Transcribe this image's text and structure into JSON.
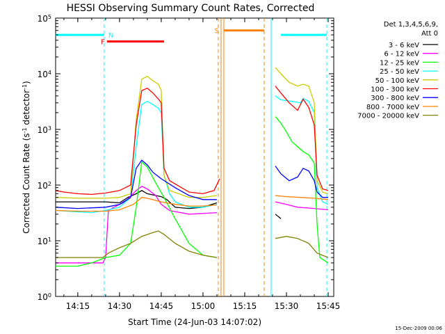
{
  "chart_data": {
    "type": "line",
    "title": "HESSI Observing Summary Count Rates, Corrected",
    "xlabel": "Start Time (24-Jun-03 14:07:02)",
    "ylabel": "Corrected Count Rate (s",
    "ylabel_sup1": "-1",
    "ylabel_mid": " detector",
    "ylabel_sup2": "-1",
    "ylabel_end": ")",
    "footer": "15-Dec-2009 00:06",
    "y_scale": "log",
    "ylim": [
      1,
      100000
    ],
    "xlim": [
      "14:07:02",
      "15:47:00"
    ],
    "x_ticks": [
      "14:15",
      "14:30",
      "14:45",
      "15:00",
      "15:15",
      "15:30",
      "15:45"
    ],
    "y_ticks": [
      {
        "base": "10",
        "exp": "0",
        "value": 1
      },
      {
        "base": "10",
        "exp": "1",
        "value": 10
      },
      {
        "base": "10",
        "exp": "2",
        "value": 100
      },
      {
        "base": "10",
        "exp": "3",
        "value": 1000
      },
      {
        "base": "10",
        "exp": "4",
        "value": 10000
      },
      {
        "base": "10",
        "exp": "5",
        "value": 100000
      }
    ],
    "legend_title_1": "Det 1,3,4,5,6,9,",
    "legend_title_2": "Att 0",
    "legend_placement": "right",
    "series": [
      {
        "name": "3 - 6 keV",
        "color": "#000000",
        "segments": [
          [
            [
              "14:07",
              50
            ],
            [
              "14:25",
              50
            ],
            [
              "14:30",
              48
            ],
            [
              "14:33",
              60
            ],
            [
              "14:36",
              70
            ],
            [
              "14:38",
              80
            ],
            [
              "14:40",
              70
            ],
            [
              "14:45",
              62
            ],
            [
              "14:47",
              55
            ],
            [
              "14:50",
              40
            ],
            [
              "14:55",
              38
            ],
            [
              "15:00",
              40
            ],
            [
              "15:05",
              48
            ]
          ],
          [
            [
              "15:26",
              30
            ],
            [
              "15:28",
              25
            ]
          ]
        ]
      },
      {
        "name": "6 - 12 keV",
        "color": "#ff00ff",
        "segments": [
          [
            [
              "14:07",
              4
            ],
            [
              "14:24",
              4
            ],
            [
              "14:25",
              5
            ],
            [
              "14:26",
              35
            ],
            [
              "14:28",
              40
            ],
            [
              "14:32",
              50
            ],
            [
              "14:36",
              80
            ],
            [
              "14:38",
              95
            ],
            [
              "14:40",
              85
            ],
            [
              "14:43",
              65
            ],
            [
              "14:45",
              45
            ],
            [
              "14:48",
              35
            ],
            [
              "14:55",
              30
            ],
            [
              "15:05",
              32
            ]
          ],
          [
            [
              "15:26",
              50
            ],
            [
              "15:30",
              45
            ],
            [
              "15:34",
              40
            ],
            [
              "15:40",
              38
            ],
            [
              "15:45",
              36
            ]
          ]
        ]
      },
      {
        "name": "12 - 25 keV",
        "color": "#00ff00",
        "segments": [
          [
            [
              "14:07",
              3.5
            ],
            [
              "14:15",
              3.5
            ],
            [
              "14:20",
              4
            ],
            [
              "14:25",
              5
            ],
            [
              "14:30",
              5.5
            ],
            [
              "14:34",
              9
            ],
            [
              "14:36",
              40
            ],
            [
              "14:38",
              260
            ],
            [
              "14:40",
              210
            ],
            [
              "14:43",
              110
            ],
            [
              "14:46",
              60
            ],
            [
              "14:50",
              25
            ],
            [
              "14:55",
              9
            ],
            [
              "15:00",
              5.5
            ],
            [
              "15:05",
              5
            ]
          ],
          [
            [
              "15:26",
              1700
            ],
            [
              "15:28",
              1300
            ],
            [
              "15:30",
              900
            ],
            [
              "15:32",
              600
            ],
            [
              "15:36",
              400
            ],
            [
              "15:38",
              350
            ],
            [
              "15:40",
              250
            ],
            [
              "15:41",
              20
            ],
            [
              "15:42",
              5
            ],
            [
              "15:45",
              4
            ]
          ]
        ]
      },
      {
        "name": "25 - 50 keV",
        "color": "#00ffff",
        "segments": [
          [
            [
              "14:07",
              35
            ],
            [
              "14:15",
              33
            ],
            [
              "14:20",
              32
            ],
            [
              "14:25",
              35
            ],
            [
              "14:30",
              40
            ],
            [
              "14:34",
              60
            ],
            [
              "14:36",
              500
            ],
            [
              "14:38",
              2800
            ],
            [
              "14:40",
              3200
            ],
            [
              "14:42",
              2800
            ],
            [
              "14:44",
              2400
            ],
            [
              "14:45",
              2000
            ],
            [
              "14:46",
              150
            ],
            [
              "14:48",
              70
            ],
            [
              "14:50",
              50
            ],
            [
              "14:55",
              40
            ],
            [
              "15:00",
              40
            ],
            [
              "15:05",
              45
            ]
          ],
          [
            [
              "15:26",
              4000
            ],
            [
              "15:28",
              3400
            ],
            [
              "15:32",
              3200
            ],
            [
              "15:35",
              3000
            ],
            [
              "15:36",
              3600
            ],
            [
              "15:38",
              3200
            ],
            [
              "15:40",
              2000
            ],
            [
              "15:41",
              90
            ],
            [
              "15:43",
              50
            ],
            [
              "15:45",
              45
            ]
          ]
        ]
      },
      {
        "name": "50 - 100 keV",
        "color": "#cccc00",
        "segments": [
          [
            [
              "14:07",
              60
            ],
            [
              "14:15",
              58
            ],
            [
              "14:25",
              58
            ],
            [
              "14:30",
              60
            ],
            [
              "14:34",
              70
            ],
            [
              "14:36",
              1500
            ],
            [
              "14:38",
              8000
            ],
            [
              "14:40",
              9000
            ],
            [
              "14:42",
              7500
            ],
            [
              "14:44",
              6500
            ],
            [
              "14:45",
              5000
            ],
            [
              "14:46",
              150
            ],
            [
              "14:48",
              80
            ],
            [
              "14:55",
              60
            ],
            [
              "15:00",
              60
            ],
            [
              "15:05",
              65
            ]
          ],
          [
            [
              "15:26",
              13000
            ],
            [
              "15:28",
              10000
            ],
            [
              "15:31",
              7000
            ],
            [
              "15:34",
              6000
            ],
            [
              "15:36",
              6500
            ],
            [
              "15:38",
              6000
            ],
            [
              "15:40",
              3000
            ],
            [
              "15:41",
              120
            ],
            [
              "15:43",
              75
            ],
            [
              "15:45",
              70
            ]
          ]
        ]
      },
      {
        "name": "100 - 300 keV",
        "color": "#ff0000",
        "segments": [
          [
            [
              "14:07",
              80
            ],
            [
              "14:10",
              75
            ],
            [
              "14:15",
              70
            ],
            [
              "14:20",
              68
            ],
            [
              "14:25",
              72
            ],
            [
              "14:30",
              80
            ],
            [
              "14:34",
              100
            ],
            [
              "14:36",
              1200
            ],
            [
              "14:38",
              5000
            ],
            [
              "14:40",
              5500
            ],
            [
              "14:42",
              4500
            ],
            [
              "14:44",
              3500
            ],
            [
              "14:45",
              3000
            ],
            [
              "14:46",
              200
            ],
            [
              "14:48",
              120
            ],
            [
              "14:55",
              75
            ],
            [
              "15:00",
              70
            ],
            [
              "15:04",
              80
            ],
            [
              "15:06",
              130
            ]
          ],
          [
            [
              "15:26",
              6000
            ],
            [
              "15:28",
              4500
            ],
            [
              "15:31",
              3000
            ],
            [
              "15:34",
              2200
            ],
            [
              "15:36",
              3500
            ],
            [
              "15:38",
              2500
            ],
            [
              "15:40",
              1200
            ],
            [
              "15:41",
              150
            ],
            [
              "15:43",
              85
            ],
            [
              "15:45",
              80
            ]
          ]
        ]
      },
      {
        "name": "300 - 800 keV",
        "color": "#0000ff",
        "segments": [
          [
            [
              "14:07",
              40
            ],
            [
              "14:15",
              38
            ],
            [
              "14:25",
              40
            ],
            [
              "14:30",
              45
            ],
            [
              "14:34",
              60
            ],
            [
              "14:36",
              200
            ],
            [
              "14:38",
              280
            ],
            [
              "14:40",
              230
            ],
            [
              "14:42",
              170
            ],
            [
              "14:45",
              130
            ],
            [
              "14:50",
              90
            ],
            [
              "14:55",
              65
            ],
            [
              "15:00",
              55
            ],
            [
              "15:05",
              55
            ]
          ],
          [
            [
              "15:26",
              220
            ],
            [
              "15:28",
              160
            ],
            [
              "15:31",
              120
            ],
            [
              "15:34",
              140
            ],
            [
              "15:36",
              200
            ],
            [
              "15:38",
              180
            ],
            [
              "15:40",
              120
            ],
            [
              "15:41",
              75
            ],
            [
              "15:43",
              60
            ],
            [
              "15:45",
              60
            ]
          ]
        ]
      },
      {
        "name": "800 - 7000 keV",
        "color": "#ff8000",
        "segments": [
          [
            [
              "14:07",
              35
            ],
            [
              "14:15",
              34
            ],
            [
              "14:25",
              34
            ],
            [
              "14:30",
              36
            ],
            [
              "14:35",
              45
            ],
            [
              "14:38",
              60
            ],
            [
              "14:40",
              58
            ],
            [
              "14:45",
              50
            ],
            [
              "14:50",
              45
            ],
            [
              "14:55",
              42
            ],
            [
              "15:00",
              42
            ],
            [
              "15:05",
              44
            ]
          ],
          [
            [
              "15:26",
              65
            ],
            [
              "15:30",
              62
            ],
            [
              "15:35",
              60
            ],
            [
              "15:40",
              58
            ],
            [
              "15:45",
              55
            ]
          ]
        ]
      },
      {
        "name": "7000 - 20000 keV",
        "color": "#808000",
        "segments": [
          [
            [
              "14:07",
              5
            ],
            [
              "14:12",
              5
            ],
            [
              "14:18",
              5
            ],
            [
              "14:24",
              5
            ],
            [
              "14:26",
              6
            ],
            [
              "14:30",
              7.5
            ],
            [
              "14:34",
              9
            ],
            [
              "14:38",
              12
            ],
            [
              "14:42",
              14
            ],
            [
              "14:44",
              15
            ],
            [
              "14:46",
              13
            ],
            [
              "14:50",
              9
            ],
            [
              "14:55",
              6.5
            ],
            [
              "15:00",
              5.5
            ],
            [
              "15:05",
              5
            ]
          ],
          [
            [
              "15:26",
              11
            ],
            [
              "15:30",
              12
            ],
            [
              "15:34",
              11
            ],
            [
              "15:38",
              9
            ],
            [
              "15:41",
              6
            ],
            [
              "15:45",
              5
            ]
          ]
        ]
      }
    ],
    "flags": [
      {
        "label": "N",
        "color": "#00ffff",
        "segments": [
          [
            "14:07",
            "14:24:30"
          ],
          [
            "15:28",
            "15:44:30"
          ]
        ],
        "level": 50000,
        "label_at": "14:24:30"
      },
      {
        "label": "F",
        "color": "#ff0000",
        "segments": [
          [
            "14:25:30",
            "14:46"
          ]
        ],
        "level": 38000,
        "label_at": "14:25:30"
      },
      {
        "label": "S",
        "color": "#ff8000",
        "segments": [
          [
            "15:07:30",
            "15:22:00"
          ]
        ],
        "level": 60000,
        "label_at": "15:06:30"
      }
    ],
    "vlines": [
      {
        "t": "14:24:30",
        "color": "#00ffff",
        "dash": true
      },
      {
        "t": "15:05:30",
        "color": "#ff8000",
        "dash": true
      },
      {
        "t": "15:06:30",
        "color": "#ff8000",
        "dash": false
      },
      {
        "t": "15:07:30",
        "color": "#ff8000",
        "dash": false
      },
      {
        "t": "15:22:00",
        "color": "#ff8000",
        "dash": true
      },
      {
        "t": "15:24:30",
        "color": "#00ffff",
        "dash": false
      },
      {
        "t": "15:44:30",
        "color": "#00ffff",
        "dash": true
      }
    ]
  }
}
